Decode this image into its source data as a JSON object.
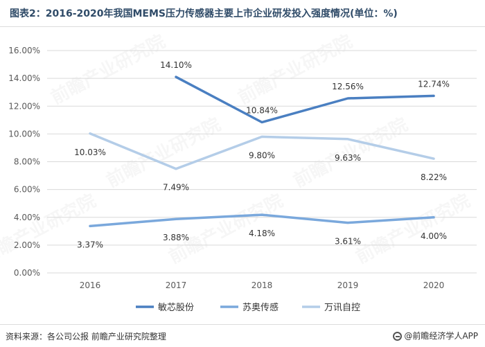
{
  "header": {
    "title": "图表2：2016-2020年我国MEMS压力传感器主要上市企业研发投入强度情况(单位：%)"
  },
  "footer": {
    "source": "资料来源：各公司公报 前瞻产业研究院整理",
    "brand": "@前瞻经济学人APP"
  },
  "watermark": {
    "text": "前瞻产业研究院"
  },
  "colors": {
    "minxin": "#4a7fc1",
    "suao": "#7aa8dc",
    "wanxun": "#b4cde8",
    "grid": "#d9d9d9",
    "axis_text": "#595959"
  },
  "chart_data": {
    "type": "line",
    "title": "图表2：2016-2020年我国MEMS压力传感器主要上市企业研发投入强度情况(单位：%)",
    "categories": [
      "2016",
      "2017",
      "2018",
      "2019",
      "2020"
    ],
    "ylim": [
      0,
      16
    ],
    "yticks": [
      0,
      2,
      4,
      6,
      8,
      10,
      12,
      14,
      16
    ],
    "ytick_labels": [
      "0.00%",
      "2.00%",
      "4.00%",
      "6.00%",
      "8.00%",
      "10.00%",
      "12.00%",
      "14.00%",
      "16.00%"
    ],
    "grid": true,
    "legend_position": "bottom",
    "series": [
      {
        "name": "敏芯股份",
        "values": [
          null,
          14.1,
          10.84,
          12.56,
          12.74
        ],
        "labels": [
          "",
          "14.10%",
          "10.84%",
          "12.56%",
          "12.74%"
        ],
        "color": "#4a7fc1",
        "label_pos": [
          "above",
          "above",
          "above",
          "above",
          "above"
        ]
      },
      {
        "name": "苏奥传感",
        "values": [
          3.37,
          3.88,
          4.18,
          3.61,
          4.0
        ],
        "labels": [
          "3.37%",
          "3.88%",
          "4.18%",
          "3.61%",
          "4.00%"
        ],
        "color": "#7aa8dc",
        "label_pos": [
          "below",
          "below",
          "below",
          "below",
          "below"
        ]
      },
      {
        "name": "万讯自控",
        "values": [
          10.03,
          7.49,
          9.8,
          9.63,
          8.22
        ],
        "labels": [
          "10.03%",
          "7.49%",
          "9.80%",
          "9.63%",
          "8.22%"
        ],
        "color": "#b4cde8",
        "label_pos": [
          "below",
          "below",
          "below",
          "below",
          "below"
        ]
      }
    ]
  }
}
